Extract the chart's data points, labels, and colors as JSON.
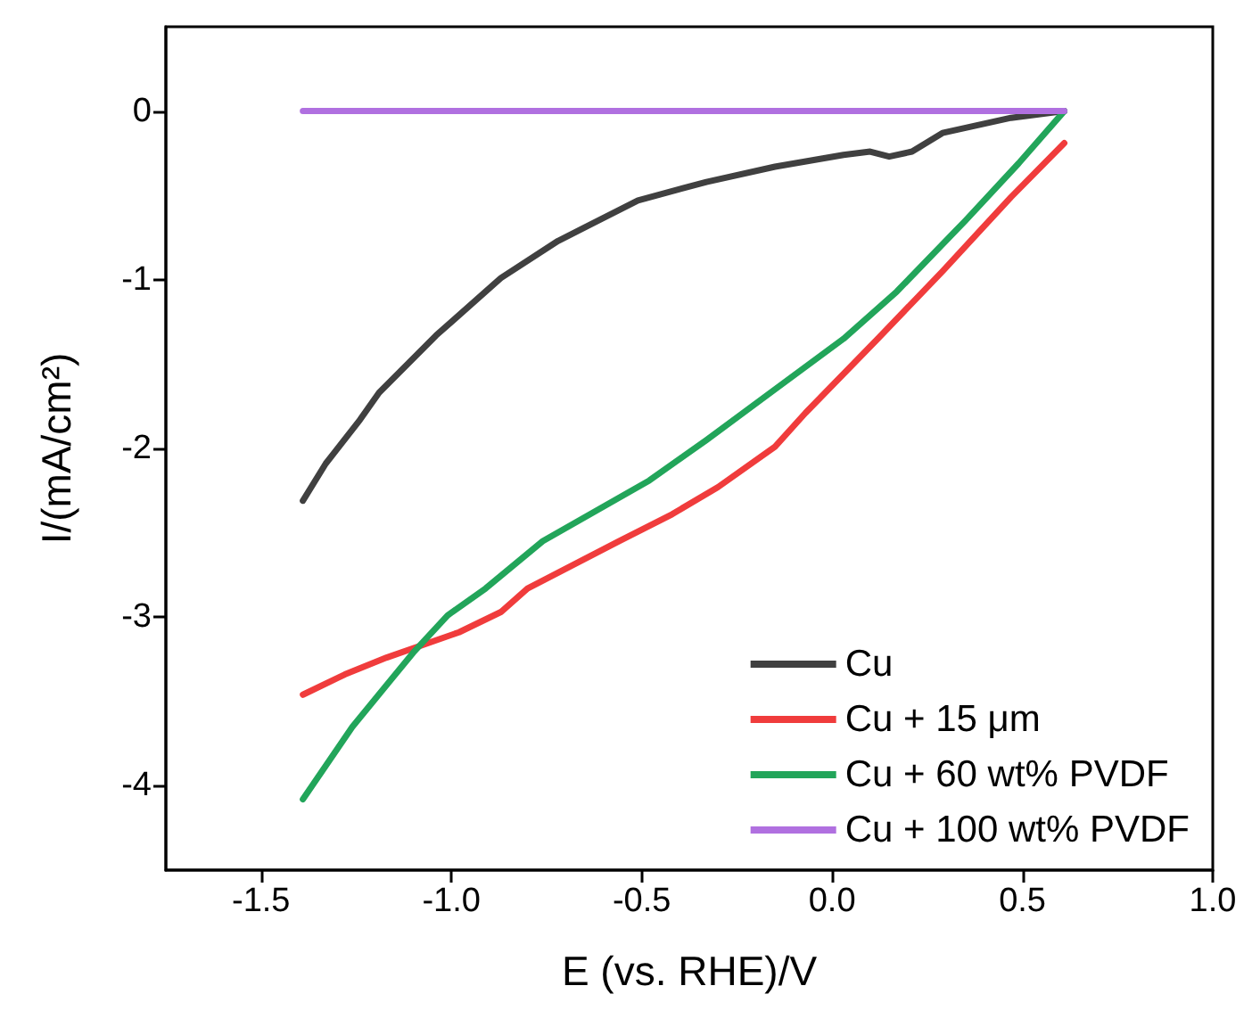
{
  "chart_data": {
    "type": "line",
    "xlabel": "E (vs. RHE)/V",
    "ylabel": "I/(mA/cm²)",
    "xlim": [
      -1.75,
      1.0
    ],
    "xticks": [
      -1.5,
      {
        "value": -1,
        "label": "-1.0"
      },
      -0.5,
      {
        "value": 0,
        "label": "0.0"
      },
      0.5,
      {
        "value": 1,
        "label": "1.0"
      }
    ],
    "ylim": [
      -4.5,
      0.5
    ],
    "yticks": [
      -4,
      -3,
      -2,
      -1,
      0
    ],
    "grid": false,
    "legend": "bottom right",
    "marker": "none",
    "line_style": "solid",
    "series": [
      {
        "name": "Cu",
        "color": "#404040",
        "x": [
          -1.39,
          -1.33,
          -1.24,
          -1.19,
          -1.04,
          -0.87,
          -0.72,
          -0.51,
          -0.33,
          -0.15,
          0.03,
          0.1,
          0.15,
          0.21,
          0.29,
          0.47,
          0.61
        ],
        "values": [
          -2.31,
          -2.09,
          -1.83,
          -1.67,
          -1.33,
          -0.99,
          -0.77,
          -0.53,
          -0.42,
          -0.33,
          -0.26,
          -0.24,
          -0.27,
          -0.24,
          -0.13,
          -0.04,
          0
        ]
      },
      {
        "name": "Cu + 15 μm",
        "color": "#f03c3c",
        "x": [
          -1.39,
          -1.28,
          -1.17,
          -0.98,
          -0.87,
          -0.8,
          -0.56,
          -0.42,
          -0.3,
          -0.15,
          -0.07,
          0.12,
          0.29,
          0.47,
          0.61
        ],
        "values": [
          -3.46,
          -3.34,
          -3.24,
          -3.09,
          -2.97,
          -2.83,
          -2.55,
          -2.39,
          -2.23,
          -1.99,
          -1.79,
          -1.35,
          -0.95,
          -0.51,
          -0.19
        ]
      },
      {
        "name": "Cu + 60 wt% PVDF",
        "color": "#22a55a",
        "x": [
          -1.39,
          -1.26,
          -1.1,
          -1.01,
          -0.91,
          -0.76,
          -0.62,
          -0.48,
          -0.33,
          -0.15,
          0.03,
          0.17,
          0.35,
          0.49,
          0.61
        ],
        "values": [
          -4.08,
          -3.65,
          -3.21,
          -2.99,
          -2.83,
          -2.55,
          -2.37,
          -2.19,
          -1.95,
          -1.65,
          -1.35,
          -1.07,
          -0.65,
          -0.31,
          0
        ]
      },
      {
        "name": "Cu + 100 wt% PVDF",
        "color": "#b070e0",
        "x": [
          -1.39,
          0.61
        ],
        "values": [
          0,
          0
        ]
      }
    ]
  }
}
